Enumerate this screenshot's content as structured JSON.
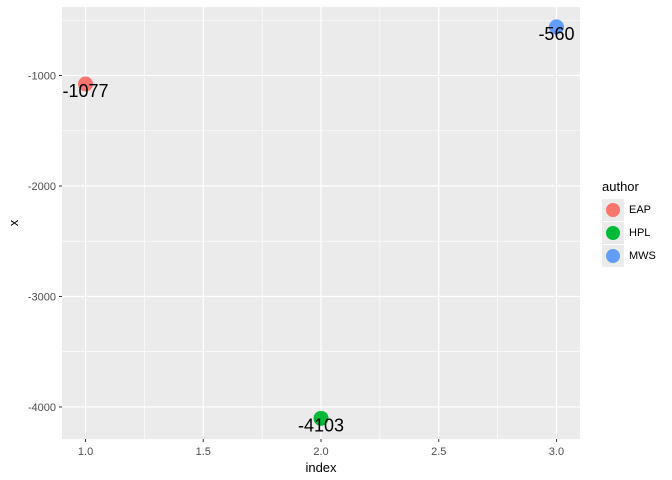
{
  "chart_data": {
    "type": "scatter",
    "xlabel": "index",
    "ylabel": "x",
    "xlim": [
      0.9,
      3.1
    ],
    "ylim": [
      -4290,
      -380
    ],
    "x_ticks": [
      1.0,
      1.5,
      2.0,
      2.5,
      3.0
    ],
    "x_tick_labels": [
      "1.0",
      "1.5",
      "2.0",
      "2.5",
      "3.0"
    ],
    "y_ticks": [
      -4000,
      -3000,
      -2000,
      -1000
    ],
    "y_tick_labels": [
      "-4000",
      "-3000",
      "-2000",
      "-1000"
    ],
    "grid": true,
    "legend": {
      "title": "author",
      "placement": "right",
      "entries": [
        {
          "label": "EAP",
          "color": "#F8766D"
        },
        {
          "label": "HPL",
          "color": "#00BA38"
        },
        {
          "label": "MWS",
          "color": "#619CFF"
        }
      ]
    },
    "points": [
      {
        "x": 1,
        "y": -1077,
        "label": "-1077",
        "author": "EAP",
        "color": "#F8766D"
      },
      {
        "x": 2,
        "y": -4103,
        "label": "-4103",
        "author": "HPL",
        "color": "#00BA38"
      },
      {
        "x": 3,
        "y": -560,
        "label": "-560",
        "author": "MWS",
        "color": "#619CFF"
      }
    ],
    "panel_background": "#ebebeb",
    "grid_color": "#ffffff"
  }
}
